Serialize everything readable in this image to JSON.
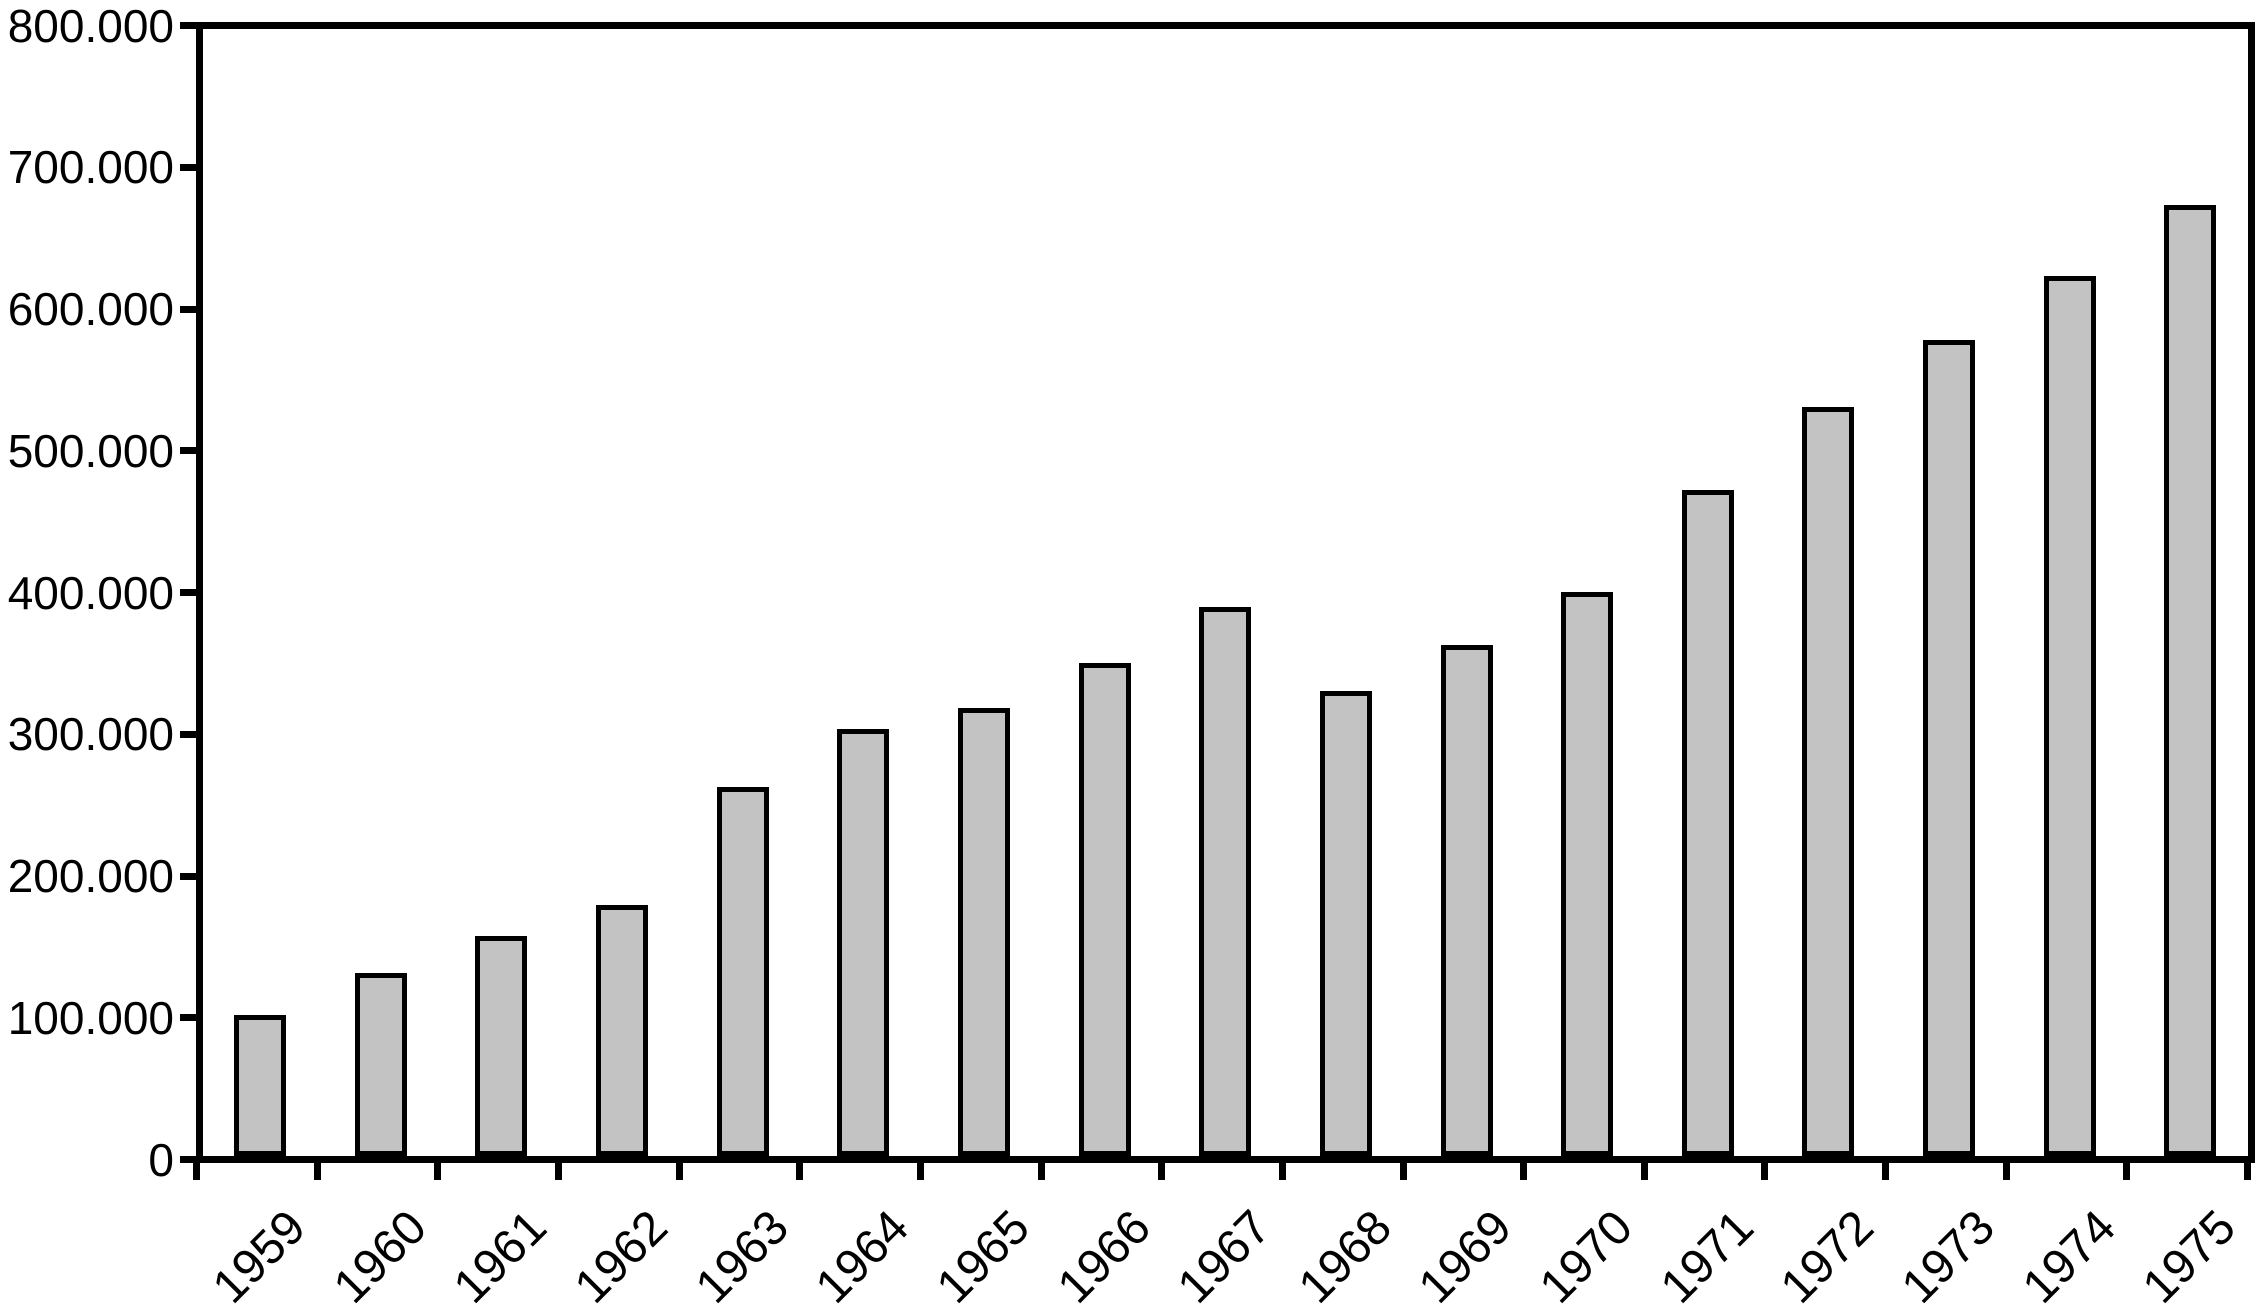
{
  "chart_data": {
    "type": "bar",
    "title": "",
    "xlabel": "",
    "ylabel": "",
    "categories": [
      "1959",
      "1960",
      "1961",
      "1962",
      "1963",
      "1964",
      "1965",
      "1966",
      "1967",
      "1968",
      "1969",
      "1970",
      "1971",
      "1972",
      "1973",
      "1974",
      "1975"
    ],
    "values": [
      100000,
      130000,
      156000,
      178000,
      262000,
      303000,
      318000,
      350000,
      390000,
      330000,
      363000,
      400000,
      473000,
      532000,
      579000,
      625000,
      675000
    ],
    "ylim": [
      0,
      800000
    ],
    "ytick_step": 100000,
    "ytick_labels": [
      "0",
      "100.000",
      "200.000",
      "300.000",
      "400.000",
      "500.000",
      "600.000",
      "700.000",
      "800.000"
    ],
    "grid": false,
    "legend": null,
    "frame": "full-box",
    "bar_fill_color": "#c3c3c3",
    "bar_border_color": "#000000",
    "axis_color": "#000000",
    "text_color": "#000000",
    "background_color": "#ffffff"
  }
}
